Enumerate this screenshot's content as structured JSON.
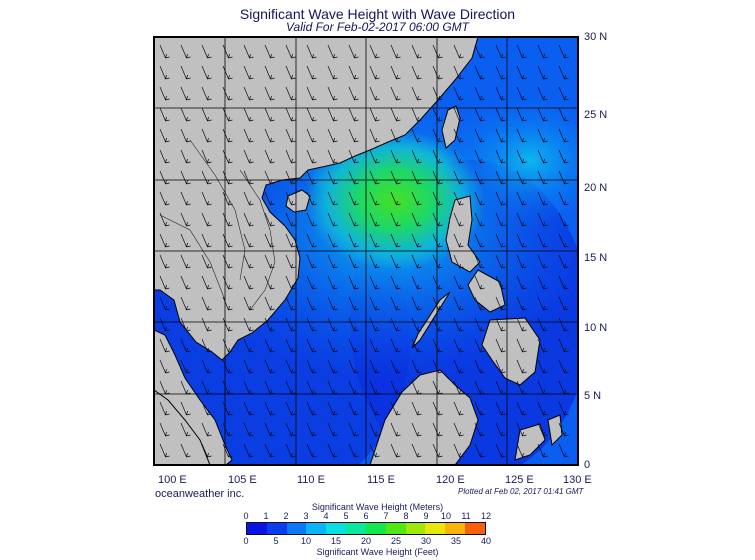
{
  "header": {
    "title": "Significant Wave Height with Wave Direction",
    "subtitle": "Valid For Feb-02-2017 06:00 GMT"
  },
  "map": {
    "lat_labels": [
      "30 N",
      "25 N",
      "20 N",
      "15 N",
      "10 N",
      "5 N",
      "0"
    ],
    "lon_labels": [
      "100 E",
      "105 E",
      "110 E",
      "115 E",
      "120 E",
      "125 E",
      "130 E"
    ],
    "lon_range": [
      100,
      130
    ],
    "lat_range": [
      0,
      30
    ],
    "land_color": "#c0c0c0",
    "peak_color": "#3ddc2a"
  },
  "footer": {
    "credit": "oceanweather inc.",
    "plotted": "Plotted at Feb 02, 2017 01:41 GMT"
  },
  "legend": {
    "meters_title": "Significant Wave Height (Meters)",
    "feet_title": "Significant Wave Height (Feet)",
    "meters_ticks": [
      "0",
      "1",
      "2",
      "3",
      "4",
      "5",
      "6",
      "7",
      "8",
      "9",
      "10",
      "11",
      "12"
    ],
    "feet_ticks": [
      "0",
      "5",
      "10",
      "15",
      "20",
      "25",
      "30",
      "35",
      "40"
    ],
    "colors": [
      "#0a14e6",
      "#0a3cf0",
      "#0a78f8",
      "#0ab4f8",
      "#0ae0e0",
      "#0ae8a0",
      "#14e850",
      "#50e814",
      "#a0e80a",
      "#e8e80a",
      "#f8b40a",
      "#f8600a",
      "#e80a0a"
    ]
  }
}
